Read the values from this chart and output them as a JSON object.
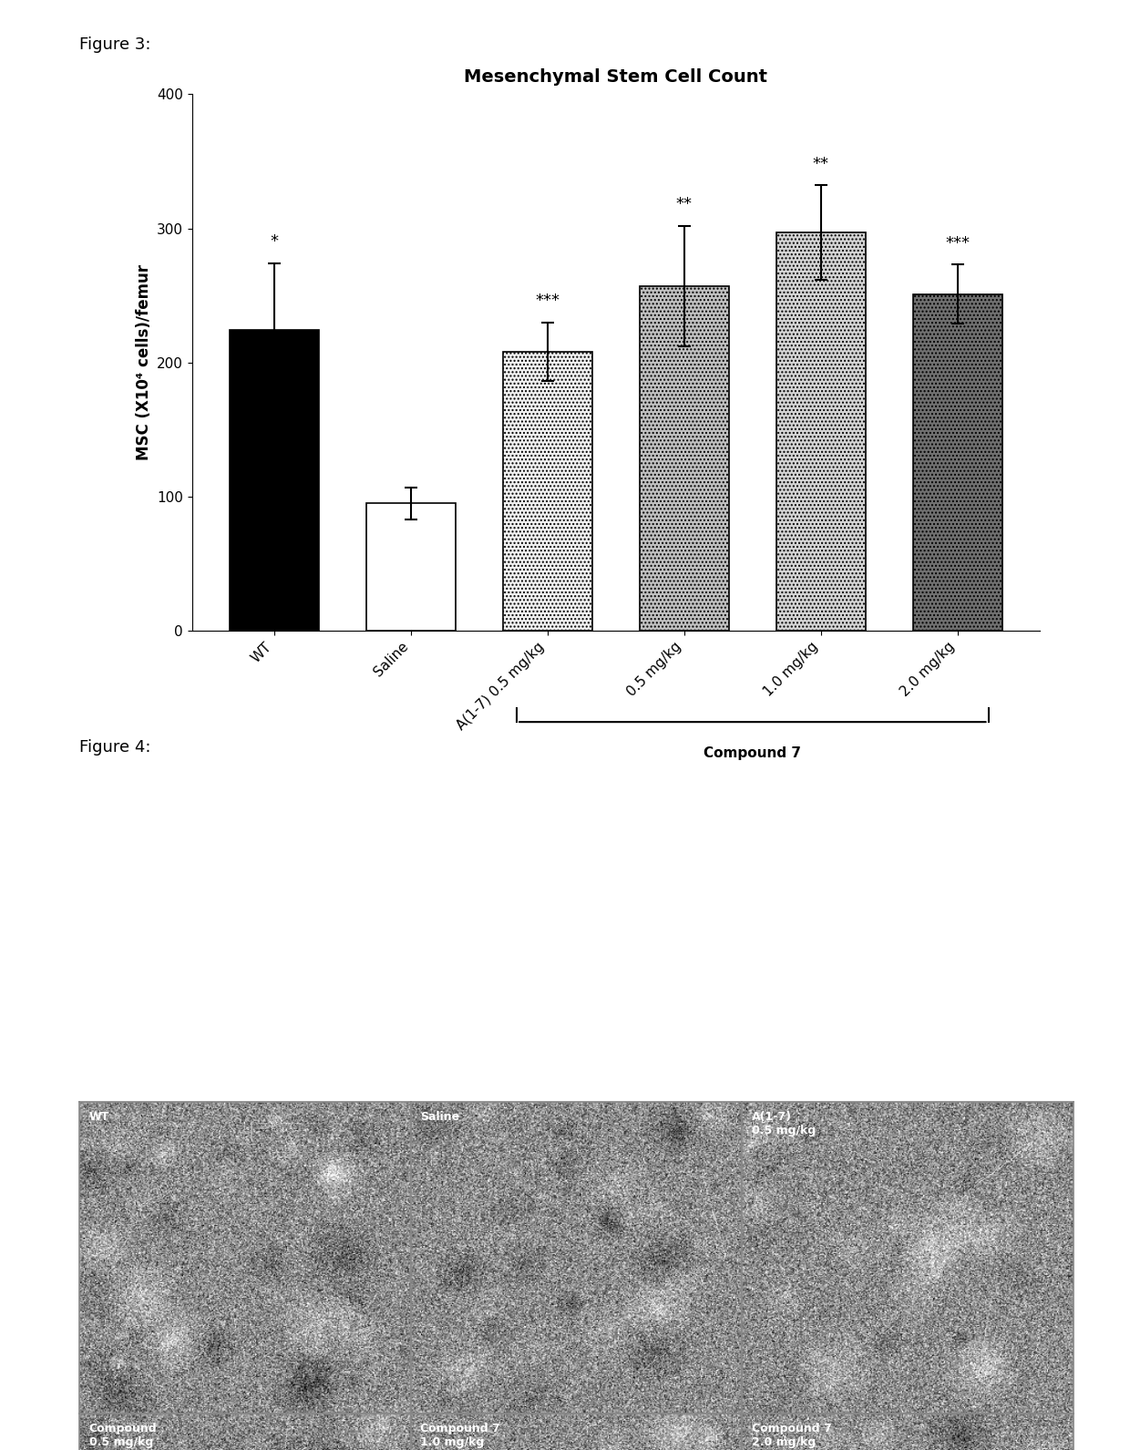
{
  "title": "Mesenchymal Stem Cell Count",
  "ylabel": "MSC (X10⁴ cells)/femur",
  "fig3_label": "Figure 3:",
  "fig4_label": "Figure 4:",
  "categories": [
    "WT",
    "Saline",
    "A(1-7) 0.5 mg/kg",
    "0.5 mg/kg",
    "1.0 mg/kg",
    "2.0 mg/kg"
  ],
  "values": [
    224,
    95,
    208,
    257,
    297,
    251
  ],
  "errors": [
    50,
    12,
    22,
    45,
    35,
    22
  ],
  "sig_labels": [
    "*",
    "",
    "***",
    "**",
    "**",
    "***"
  ],
  "ylim": [
    0,
    400
  ],
  "yticks": [
    0,
    100,
    200,
    300,
    400
  ],
  "compound7_label": "Compound 7",
  "background_color": "#ffffff",
  "title_fontsize": 14,
  "axis_fontsize": 12,
  "tick_fontsize": 11,
  "face_colors": [
    "#000000",
    "#ffffff",
    "#f0f0f0",
    "#c0c0c0",
    "#d4d4d4",
    "#707070"
  ],
  "hatch_patterns": [
    "",
    "",
    "....",
    "....",
    "....",
    "...."
  ],
  "panel_labels_row0": [
    "WT",
    "Saline",
    "A(1-7)\n0.5 mg/kg"
  ],
  "panel_labels_row1": [
    "Compound\n0.5 mg/kg",
    "Compound 7\n1.0 mg/kg",
    "Compound 7\n2.0 mg/kg"
  ]
}
